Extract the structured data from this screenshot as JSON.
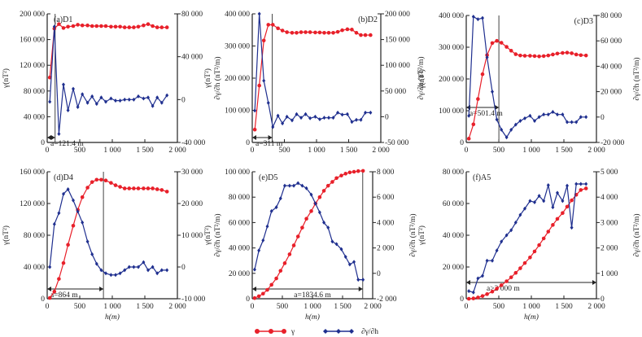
{
  "legend": {
    "gamma_label": "γ",
    "grad_label": "∂γ/∂h",
    "gamma_color": "#e8202a",
    "grad_color": "#1f2f8f"
  },
  "chart_data": [
    {
      "type": "line",
      "title": "(a)D1",
      "xlabel": "",
      "ylabel_left": "γ(nT²)",
      "ylabel_right": "∂γ/∂h (nT²/m)",
      "xlim": [
        0,
        2000
      ],
      "xticks": [
        0,
        500,
        1000,
        1500,
        2000
      ],
      "xtick_labels": [
        "0",
        "500",
        "1 000",
        "1 500",
        "2 000"
      ],
      "ylim_left": [
        0,
        200000
      ],
      "yticks_left_labels": [
        "0",
        "40 000",
        "80 000",
        "120 000",
        "160 000",
        "200 000"
      ],
      "yticks_left": [
        0,
        40000,
        80000,
        120000,
        160000,
        200000
      ],
      "ylim_right": [
        -40000,
        80000
      ],
      "yticks_right_labels": [
        "-40 000",
        "0",
        "40 000",
        "80 000"
      ],
      "yticks_right": [
        -40000,
        0,
        40000,
        80000
      ],
      "range_value": 121.4,
      "range_label": "a=121.4 m",
      "x": [
        40,
        110,
        180,
        250,
        320,
        400,
        470,
        540,
        620,
        690,
        760,
        830,
        900,
        980,
        1050,
        1120,
        1190,
        1260,
        1330,
        1400,
        1480,
        1550,
        1620,
        1690,
        1760,
        1840
      ],
      "series": [
        {
          "name": "γ",
          "axis": "left",
          "values": [
            101000,
            177000,
            184000,
            178000,
            180000,
            181000,
            183000,
            182000,
            182000,
            181000,
            181000,
            181000,
            181000,
            180000,
            180000,
            180000,
            179000,
            179000,
            179000,
            180000,
            182000,
            184000,
            181000,
            179000,
            179000,
            179000
          ]
        },
        {
          "name": "∂γ/∂h",
          "axis": "right",
          "values": [
            -2000,
            68000,
            -32000,
            14000,
            -10000,
            10000,
            -7000,
            5000,
            -3000,
            3000,
            -4000,
            2000,
            -2000,
            1000,
            -1000,
            -1000,
            0,
            0,
            0,
            3000,
            1000,
            2000,
            -6000,
            2000,
            -3000,
            4000
          ]
        }
      ]
    },
    {
      "type": "line",
      "title": "(b)D2",
      "xlabel": "",
      "ylabel_left": "γ(nT²)",
      "ylabel_right": "∂γ/∂h (nT²/m)",
      "xlim": [
        0,
        2000
      ],
      "xticks": [
        0,
        500,
        1000,
        1500,
        2000
      ],
      "xtick_labels": [
        "0",
        "500",
        "1 000",
        "1 500",
        "2 000"
      ],
      "ylim_left": [
        0,
        400000
      ],
      "yticks_left": [
        0,
        100000,
        200000,
        300000,
        400000
      ],
      "yticks_left_labels": [
        "0",
        "100 000",
        "200 000",
        "300 000",
        "400 000"
      ],
      "ylim_right": [
        -50000,
        200000
      ],
      "yticks_right": [
        -50000,
        0,
        50000,
        100000,
        150000,
        200000
      ],
      "yticks_right_labels": [
        "-50 000",
        "0",
        "50 000",
        "100 000",
        "150 000",
        "200 000"
      ],
      "range_value": 311,
      "range_label": "a=311 m",
      "x": [
        40,
        110,
        180,
        250,
        320,
        400,
        470,
        540,
        620,
        690,
        760,
        830,
        900,
        980,
        1050,
        1120,
        1190,
        1260,
        1330,
        1400,
        1480,
        1550,
        1620,
        1690,
        1760,
        1840
      ],
      "series": [
        {
          "name": "γ",
          "axis": "left",
          "values": [
            40000,
            177000,
            317000,
            366000,
            366000,
            355000,
            348000,
            343000,
            341000,
            341000,
            343000,
            343000,
            343000,
            342000,
            342000,
            341000,
            341000,
            341000,
            344000,
            349000,
            352000,
            351000,
            341000,
            334000,
            334000,
            334000
          ]
        },
        {
          "name": "∂γ/∂h",
          "axis": "right",
          "values": [
            12000,
            200000,
            70000,
            27000,
            -20000,
            2000,
            -13000,
            0,
            -7000,
            5000,
            -2000,
            5000,
            -3000,
            0,
            -5000,
            -2000,
            -2000,
            -2000,
            8000,
            4000,
            5000,
            -10000,
            -6000,
            -6000,
            8000,
            8000
          ]
        }
      ]
    },
    {
      "type": "line",
      "title": "(c)D3",
      "xlabel": "",
      "ylabel_left": "γ(nT²)",
      "ylabel_right": "∂γ/∂h (nT²/m)",
      "xlim": [
        0,
        2000
      ],
      "xticks": [
        0,
        500,
        1000,
        1500,
        2000
      ],
      "xtick_labels": [
        "0",
        "500",
        "1 000",
        "1 500",
        "2 000"
      ],
      "ylim_left": [
        0,
        400000
      ],
      "yticks_left": [
        0,
        100000,
        200000,
        300000,
        400000
      ],
      "yticks_left_labels": [
        "0",
        "100 000",
        "200 000",
        "300 000",
        "400 000"
      ],
      "ylim_right": [
        -20000,
        80000
      ],
      "yticks_right": [
        -20000,
        0,
        20000,
        40000,
        60000,
        80000
      ],
      "yticks_right_labels": [
        "-20 000",
        "0",
        "20 000",
        "40 000",
        "60 000",
        "80 000"
      ],
      "range_value": 501.4,
      "range_label": "a=501.4 m",
      "x": [
        40,
        110,
        180,
        250,
        320,
        400,
        470,
        540,
        620,
        690,
        760,
        830,
        900,
        980,
        1050,
        1120,
        1190,
        1260,
        1330,
        1400,
        1480,
        1550,
        1620,
        1690,
        1760,
        1840
      ],
      "series": [
        {
          "name": "γ",
          "axis": "left",
          "values": [
            12000,
            57000,
            137000,
            215000,
            275000,
            313000,
            320000,
            314000,
            301000,
            289000,
            278000,
            274000,
            273000,
            273000,
            272000,
            271000,
            272000,
            274000,
            277000,
            280000,
            282000,
            283000,
            281000,
            277000,
            275000,
            274000
          ]
        },
        {
          "name": "∂γ/∂h",
          "axis": "right",
          "values": [
            1000,
            79000,
            77000,
            78000,
            47000,
            20000,
            -2000,
            -10000,
            -16000,
            -10000,
            -6000,
            -3000,
            -1000,
            1000,
            -3000,
            0,
            2000,
            2000,
            4000,
            2000,
            2000,
            -4000,
            -4000,
            -4000,
            0,
            0
          ]
        }
      ]
    },
    {
      "type": "line",
      "title": "(d)D4",
      "xlabel": "h(m)",
      "ylabel_left": "γ(nT²)",
      "ylabel_right": "∂γ/∂h (nT²/m)",
      "xlim": [
        0,
        2000
      ],
      "xticks": [
        0,
        500,
        1000,
        1500,
        2000
      ],
      "xtick_labels": [
        "0",
        "500",
        "1 000",
        "1 500",
        "2 000"
      ],
      "ylim_left": [
        0,
        160000
      ],
      "yticks_left": [
        0,
        40000,
        80000,
        120000,
        160000
      ],
      "yticks_left_labels": [
        "0",
        "40 000",
        "80 000",
        "120 000",
        "160 000"
      ],
      "ylim_right": [
        -10000,
        30000
      ],
      "yticks_right": [
        -10000,
        0,
        10000,
        20000,
        30000
      ],
      "yticks_right_labels": [
        "-10 000",
        "0",
        "10 000",
        "20 000",
        "30 000"
      ],
      "range_value": 864,
      "range_label": "a=864 m",
      "x": [
        40,
        110,
        180,
        250,
        320,
        400,
        470,
        540,
        620,
        690,
        760,
        830,
        900,
        980,
        1050,
        1120,
        1190,
        1260,
        1330,
        1400,
        1480,
        1550,
        1620,
        1690,
        1760,
        1840
      ],
      "series": [
        {
          "name": "γ",
          "axis": "left",
          "values": [
            1000,
            9000,
            25000,
            45000,
            68000,
            92000,
            112000,
            128000,
            140000,
            147000,
            150000,
            150000,
            149000,
            146000,
            143000,
            141000,
            139000,
            139000,
            139000,
            139000,
            139000,
            139000,
            139000,
            138000,
            137000,
            135000
          ]
        },
        {
          "name": "∂γ/∂h",
          "axis": "right",
          "values": [
            0,
            13500,
            17000,
            23000,
            24500,
            21000,
            17500,
            14000,
            8000,
            4000,
            1000,
            -1000,
            -2000,
            -2500,
            -2500,
            -2000,
            -1000,
            0,
            0,
            0,
            1500,
            -1000,
            0,
            -2000,
            -1000,
            -1000
          ]
        }
      ]
    },
    {
      "type": "line",
      "title": "(e)D5",
      "xlabel": "h(m)",
      "ylabel_left": "γ(nT²)",
      "ylabel_right": "∂γ/∂h (nT²/m)",
      "xlim": [
        0,
        2000
      ],
      "xticks": [
        0,
        500,
        1000,
        1500,
        2000
      ],
      "xtick_labels": [
        "0",
        "500",
        "1 000",
        "1 500",
        "2 000"
      ],
      "ylim_left": [
        0,
        100000
      ],
      "yticks_left": [
        0,
        20000,
        40000,
        60000,
        80000,
        100000
      ],
      "yticks_left_labels": [
        "0",
        "20 000",
        "40 000",
        "60 000",
        "80 000",
        "100 000"
      ],
      "ylim_right": [
        -2000,
        8000
      ],
      "yticks_right": [
        -2000,
        0,
        2000,
        4000,
        6000,
        8000
      ],
      "yticks_right_labels": [
        "-2 000",
        "0",
        "2 000",
        "4 000",
        "6 000",
        "8 000"
      ],
      "range_value": 1834.6,
      "range_label": "a=1834.6 m",
      "x": [
        40,
        110,
        180,
        250,
        320,
        400,
        470,
        540,
        620,
        690,
        760,
        830,
        900,
        980,
        1050,
        1120,
        1190,
        1260,
        1330,
        1400,
        1480,
        1550,
        1620,
        1690,
        1760,
        1840
      ],
      "series": [
        {
          "name": "γ",
          "axis": "left",
          "values": [
            500,
            2000,
            4000,
            7000,
            11000,
            16000,
            22000,
            28000,
            35000,
            42000,
            49000,
            56000,
            63000,
            69000,
            75000,
            80000,
            85000,
            89000,
            92000,
            95000,
            97000,
            98500,
            99500,
            100000,
            100500,
            100700
          ]
        },
        {
          "name": "∂γ/∂h",
          "axis": "right",
          "values": [
            300,
            1800,
            2600,
            3700,
            4900,
            5200,
            5900,
            6900,
            6900,
            6900,
            7100,
            6900,
            6700,
            6200,
            5500,
            4800,
            4000,
            3600,
            2500,
            2300,
            1900,
            1300,
            700,
            900,
            -500,
            -500
          ]
        }
      ]
    },
    {
      "type": "line",
      "title": "(f)A5",
      "xlabel": "h(m)",
      "ylabel_left": "γ(nT²)",
      "ylabel_right": "∂γ/∂h (nT²/m)",
      "xlim": [
        0,
        2000
      ],
      "xticks": [
        0,
        500,
        1000,
        1500,
        2000
      ],
      "xtick_labels": [
        "0",
        "500",
        "1 000",
        "1 500",
        "2 000"
      ],
      "ylim_left": [
        0,
        80000
      ],
      "yticks_left": [
        0,
        20000,
        40000,
        60000,
        80000
      ],
      "yticks_left_labels": [
        "0",
        "20 000",
        "40 000",
        "60 000",
        "80 000"
      ],
      "ylim_right": [
        0,
        5000
      ],
      "yticks_right": [
        0,
        1000,
        2000,
        3000,
        4000,
        5000
      ],
      "yticks_right_labels": [
        "0",
        "1 000",
        "2 000",
        "3 000",
        "4 000",
        "5 000"
      ],
      "range_value": 2000,
      "range_label": "a>2 000 m",
      "x": [
        40,
        110,
        180,
        250,
        320,
        400,
        470,
        540,
        620,
        690,
        760,
        830,
        900,
        980,
        1050,
        1120,
        1190,
        1260,
        1330,
        1400,
        1480,
        1550,
        1620,
        1690,
        1760,
        1840
      ],
      "series": [
        {
          "name": "γ",
          "axis": "left",
          "values": [
            0,
            200,
            800,
            1700,
            2900,
            4500,
            6400,
            8500,
            11000,
            13500,
            16300,
            19200,
            22500,
            26000,
            29800,
            33800,
            38000,
            42300,
            46500,
            50300,
            54000,
            58000,
            62000,
            65500,
            68500,
            69500
          ]
        },
        {
          "name": "∂γ/∂h",
          "axis": "right",
          "values": [
            300,
            250,
            800,
            900,
            1500,
            1500,
            1900,
            2250,
            2500,
            2700,
            3000,
            3300,
            3550,
            3850,
            3800,
            4050,
            3850,
            4470,
            3600,
            4170,
            3850,
            4450,
            2800,
            4520,
            4520,
            4520
          ]
        }
      ]
    }
  ]
}
